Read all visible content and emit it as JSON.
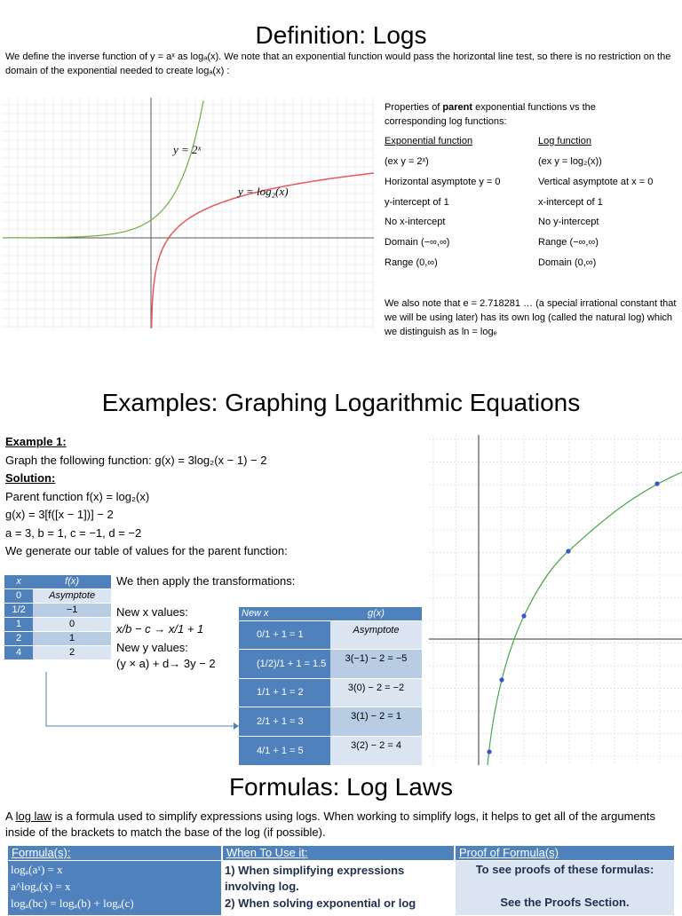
{
  "definition": {
    "title": "Definition: Logs",
    "intro": "We define the inverse function of y = aˣ as logₐ(x). We note that an exponential function would pass the horizontal line test, so there is no restriction on the domain of the exponential needed to create logₐ(x) :",
    "graph": {
      "exp_label": "y = 2ˣ",
      "log_label": "y = log₂(x)"
    },
    "properties": {
      "intro_before": "Properties of ",
      "intro_bold": "parent",
      "intro_after": " exponential functions vs the corresponding log functions:",
      "headers": [
        "Exponential function",
        "Log function"
      ],
      "rows": [
        [
          "(ex y = 2ˣ)",
          "(ex y = log₂(x))"
        ],
        [
          "Horizontal asymptote y = 0",
          "Vertical asymptote at x = 0"
        ],
        [
          "y-intercept of 1",
          "x-intercept of 1"
        ],
        [
          "No x-intercept",
          "No y-intercept"
        ],
        [
          "Domain (−∞,∞)",
          "Range (−∞,∞)"
        ],
        [
          "Range (0,∞)",
          "Domain (0,∞)"
        ]
      ]
    },
    "e_note": "We also note that e = 2.718281 … (a special irrational constant that we will be using later) has its own log (called the natural log) which we distinguish as ln = logₑ"
  },
  "examples": {
    "title": "Examples: Graphing Logarithmic Equations",
    "example_label": "Example 1:",
    "task": "Graph the following function:  g(x) = 3log₂(x − 1) − 2",
    "solution_label": "Solution:",
    "lines": [
      "Parent function f(x) = log₂(x)",
      " g(x) = 3[f([x − 1])] − 2",
      "a = 3, b = 1, c = −1, d = −2",
      "We generate our table of values for the parent function:"
    ],
    "parent_table": {
      "headers": [
        "x",
        "f(x)"
      ],
      "rows": [
        [
          "0",
          "Asymptote"
        ],
        [
          "1/2",
          "−1"
        ],
        [
          "1",
          "0"
        ],
        [
          "2",
          "1"
        ],
        [
          "4",
          "2"
        ]
      ]
    },
    "transform_intro": "We then apply the transformations:",
    "new_x_label": "New x values:",
    "new_x_formula": "x/b − c     →  x/1 + 1",
    "new_y_label": "New y values:",
    "new_y_formula": "(y × a) + d→  3y − 2",
    "transformed_table": {
      "headers": [
        "New x",
        "g(x)"
      ],
      "rows": [
        [
          "0/1 + 1 = 1",
          "Asymptote"
        ],
        [
          "(1/2)/1 + 1 = 1.5",
          "3(−1) − 2 = −5"
        ],
        [
          "1/1 + 1 = 2",
          "3(0) − 2 = −2"
        ],
        [
          "2/1 + 1 = 3",
          "3(1) − 2 = 1"
        ],
        [
          "4/1 + 1 = 5",
          "3(2) − 2 = 4"
        ]
      ]
    }
  },
  "formulas": {
    "title": "Formulas: Log Laws",
    "para_before": "A ",
    "para_link": "log law",
    "para_after": " is a formula used to simplify expressions using logs. When working to simplify logs, it helps to get all of the arguments inside of the brackets to match the base of the log (if possible).",
    "table": {
      "headers": [
        "Formula(s):",
        "When To Use it:",
        "Proof of Formula(s)"
      ],
      "formulas": [
        "logₐ(aˣ) = x",
        "a^logₐ(x) = x",
        "logₐ(bc) = logₐ(b) + logₐ(c)"
      ],
      "uses": [
        "1)  When simplifying expressions involving log.",
        "2)  When solving exponential or log"
      ],
      "proofs": [
        "To see proofs of these formulas:",
        "See the Proofs Section."
      ]
    }
  }
}
